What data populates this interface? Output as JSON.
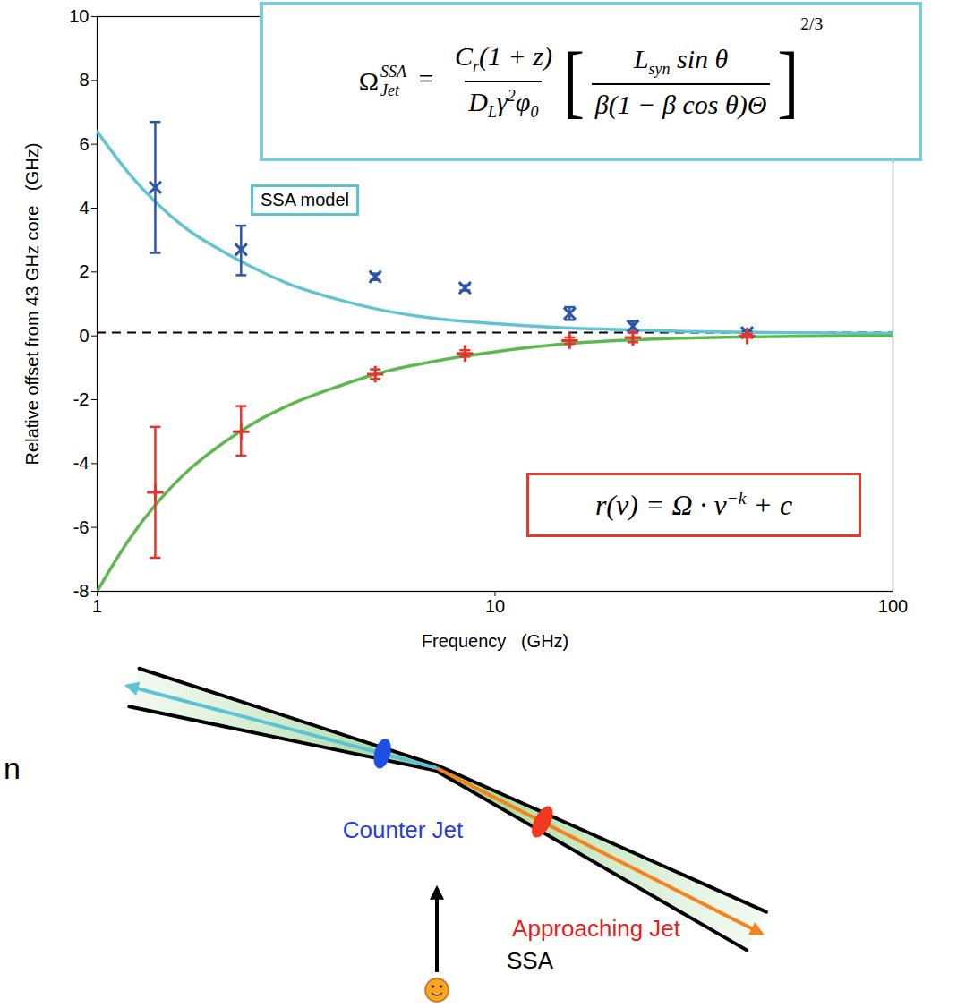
{
  "chart_data": {
    "type": "scatter",
    "xlabel": "Frequency   (GHz)",
    "ylabel": "Relative offset from 43 GHz core   (GHz)",
    "log": "x",
    "grid": false,
    "xlim": [
      1,
      100
    ],
    "xticks": [
      1,
      10,
      100
    ],
    "ylim": [
      -8,
      10
    ],
    "yticks": [
      -8,
      -6,
      -4,
      -2,
      0,
      2,
      4,
      6,
      8,
      10
    ],
    "series": [
      {
        "type": "rule",
        "color": "#000000",
        "line_style": "dashed",
        "values": [
          0.1
        ]
      },
      {
        "name": "SSA model",
        "type": "line",
        "color": "#62c4d3",
        "line_style": "solid",
        "x": [
          1,
          1.2,
          1.4,
          1.7,
          2,
          2.5,
          3,
          4,
          5,
          7,
          10,
          15,
          20,
          30,
          50,
          100
        ],
        "values": [
          6.4,
          5.1,
          4.2,
          3.3,
          2.75,
          2.1,
          1.65,
          1.15,
          0.85,
          0.55,
          0.38,
          0.25,
          0.2,
          0.14,
          0.1,
          0.08
        ]
      },
      {
        "type": "line",
        "color": "#5db84e",
        "line_style": "solid",
        "x": [
          1,
          1.2,
          1.4,
          1.7,
          2,
          2.5,
          3,
          4,
          5,
          7,
          10,
          15,
          20,
          30,
          50,
          100
        ],
        "values": [
          -8,
          -6.4,
          -5.3,
          -4.2,
          -3.5,
          -2.7,
          -2.2,
          -1.6,
          -1.2,
          -0.8,
          -0.5,
          -0.25,
          -0.15,
          -0.07,
          -0.02,
          0
        ]
      },
      {
        "name": "Counter Jet",
        "type": "scatter",
        "color": "#2b55a8",
        "marker": "times",
        "x": [
          1.4,
          2.3,
          5.0,
          8.4,
          15.4,
          22.2,
          43
        ],
        "values": [
          4.65,
          2.7,
          1.85,
          1.5,
          0.7,
          0.3,
          0.1
        ],
        "error_low": [
          2.6,
          1.9,
          1.75,
          1.42,
          0.5,
          0.12,
          0.05
        ],
        "error_high": [
          6.7,
          3.45,
          1.95,
          1.58,
          0.9,
          0.45,
          0.15
        ]
      },
      {
        "name": "Approaching Jet",
        "type": "scatter",
        "color": "#e5352b",
        "marker": "plus",
        "x": [
          1.4,
          2.3,
          5.0,
          8.4,
          15.4,
          22.2,
          43
        ],
        "values": [
          -4.9,
          -3.0,
          -1.2,
          -0.55,
          -0.15,
          -0.05,
          0
        ],
        "error_low": [
          -6.95,
          -3.75,
          -1.35,
          -0.65,
          -0.25,
          -0.2,
          -0.05
        ],
        "error_high": [
          -2.85,
          -2.2,
          -1.05,
          -0.45,
          -0.05,
          0.1,
          0.05
        ]
      }
    ],
    "annotations": {
      "model_label": {
        "text": "SSA model",
        "color": "#5bc3d2"
      },
      "formula_model": {
        "color": "#7ccad6",
        "lhs": {
          "base": "Ω",
          "sup": "SSA",
          "sub": "Jet"
        },
        "relation": "=",
        "fraction": {
          "num": [
            {
              "t": "C"
            },
            {
              "t": "r",
              "sub": true
            },
            {
              "t": "(1 + z)"
            }
          ],
          "den": [
            {
              "t": "D"
            },
            {
              "t": "L",
              "sub": true
            },
            {
              "t": "γ"
            },
            {
              "t": "2",
              "sup": true
            },
            {
              "t": "φ"
            },
            {
              "t": "0",
              "sub": true
            }
          ]
        },
        "bracket": [
          "[",
          "]"
        ],
        "bracket_fraction": {
          "num": [
            {
              "t": "L"
            },
            {
              "t": "syn",
              "sub": true
            },
            {
              "t": " sin θ"
            }
          ],
          "den": [
            {
              "t": "β(1 − β cos θ)Θ"
            }
          ]
        },
        "power": "2/3"
      },
      "formula_fit": {
        "color": "#e23b2b",
        "tokens": [
          {
            "t": "r(ν) = Ω · ν"
          },
          {
            "t": "−k",
            "sup": true
          },
          {
            "t": " + c"
          }
        ]
      }
    }
  },
  "diagram": {
    "counter_jet": {
      "text": "Counter Jet",
      "color": "#1f3fe0"
    },
    "approaching_jet": {
      "text": "Approaching Jet",
      "color": "#e0221a"
    },
    "absorption": {
      "text": "SSA",
      "color": "#000000"
    },
    "edge_fragment": {
      "text": "n",
      "color": "#000000"
    }
  }
}
